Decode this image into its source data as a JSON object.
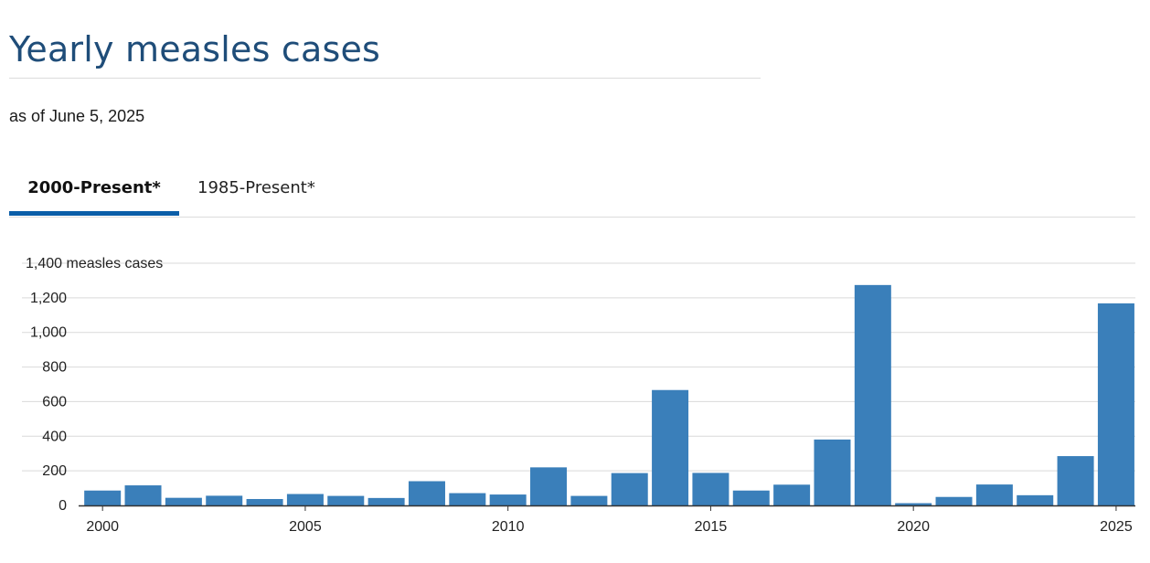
{
  "header": {
    "title": "Yearly measles cases",
    "subtitle": "as of June 5, 2025"
  },
  "tabs": [
    {
      "label": "2000-Present*",
      "active": true
    },
    {
      "label": "1985-Present*",
      "active": false
    }
  ],
  "colors": {
    "title": "#1f4d79",
    "bar": "#3a7fba",
    "active_tab": "#0b5ea8"
  },
  "chart_data": {
    "type": "bar",
    "x": [
      2000,
      2001,
      2002,
      2003,
      2004,
      2005,
      2006,
      2007,
      2008,
      2009,
      2010,
      2011,
      2012,
      2013,
      2014,
      2015,
      2016,
      2017,
      2018,
      2019,
      2020,
      2021,
      2022,
      2023,
      2024,
      2025
    ],
    "values": [
      86,
      116,
      44,
      56,
      37,
      66,
      55,
      43,
      140,
      71,
      63,
      220,
      55,
      187,
      667,
      188,
      86,
      120,
      381,
      1274,
      13,
      49,
      121,
      59,
      285,
      1168
    ],
    "x_tick_labels": [
      "2000",
      "2005",
      "2010",
      "2015",
      "2020",
      "2025"
    ],
    "y_ticks": [
      {
        "value": 0,
        "label": "0"
      },
      {
        "value": 200,
        "label": "200"
      },
      {
        "value": 400,
        "label": "400"
      },
      {
        "value": 600,
        "label": "600"
      },
      {
        "value": 800,
        "label": "800"
      },
      {
        "value": 1000,
        "label": "1,000"
      },
      {
        "value": 1200,
        "label": "1,200"
      },
      {
        "value": 1400,
        "label": "1,400 measles cases"
      }
    ],
    "ylim": [
      0,
      1400
    ],
    "grid": true,
    "legend": "none"
  }
}
